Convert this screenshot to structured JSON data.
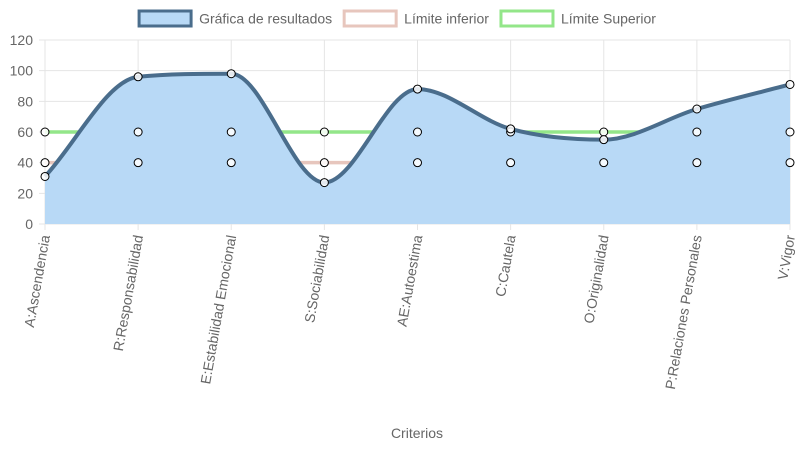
{
  "chart_data": {
    "type": "line",
    "categories": [
      "A:Ascendencia",
      "R:Responsabilidad",
      "E:Estabilidad Emocional",
      "S:Sociabilidad",
      "AE:Autoestima",
      "C:Cautela",
      "O:Originalidad",
      "P:Relaciones Personales",
      "V:Vigor"
    ],
    "series": [
      {
        "name": "Gráfica de resultados",
        "values": [
          31,
          96,
          98,
          27,
          88,
          62,
          55,
          75,
          91
        ],
        "fill": true,
        "smooth": true,
        "border_color": "#4a6d8c",
        "fill_color": "#b8d9f6"
      },
      {
        "name": "Límite inferior",
        "values": [
          40,
          40,
          40,
          40,
          40,
          40,
          40,
          40,
          40
        ],
        "fill": false,
        "smooth": false,
        "border_color": "#e7c6bd",
        "fill_color": "#ffffff"
      },
      {
        "name": "Límite Superior",
        "values": [
          60,
          60,
          60,
          60,
          60,
          60,
          60,
          60,
          60
        ],
        "fill": false,
        "smooth": false,
        "border_color": "#93e689",
        "fill_color": "#ffffff"
      }
    ],
    "y_ticks": [
      "0",
      "20",
      "40",
      "60",
      "80",
      "100",
      "120"
    ],
    "ylim": [
      0,
      120
    ],
    "xlabel": "Criterios",
    "ylabel": "",
    "grid": true,
    "legend_position": "top-center",
    "colors": {
      "grid": "#e5e5e5",
      "axis_text": "#666666",
      "point_fill": "#ffffff",
      "point_border": "#000000"
    }
  }
}
